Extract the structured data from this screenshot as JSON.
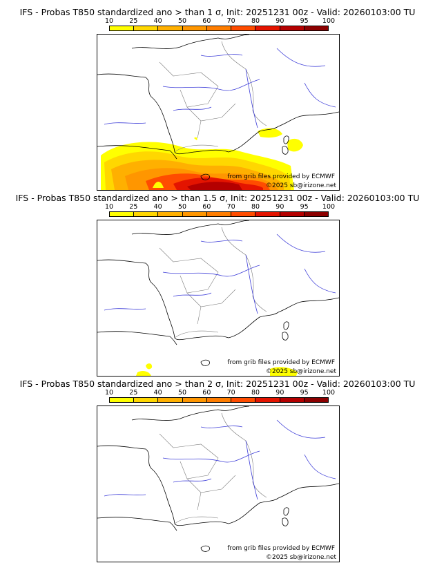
{
  "legend": {
    "ticks": [
      "10",
      "25",
      "40",
      "50",
      "60",
      "70",
      "80",
      "90",
      "95",
      "100"
    ],
    "colors": [
      "#ffff00",
      "#ffd700",
      "#ffb000",
      "#ff9600",
      "#ff7d00",
      "#ff4c00",
      "#e41400",
      "#b40000",
      "#8c0000"
    ]
  },
  "panels": [
    {
      "title": "IFS - Probas T850  standardized ano > than 1 σ, Init: 20251231 00z - Valid: 20260103:00 TU"
    },
    {
      "title": "IFS - Probas T850  standardized ano > than 1.5 σ, Init: 20251231 00z - Valid: 20260103:00 TU"
    },
    {
      "title": "IFS - Probas T850  standardized ano > than 2 σ, Init: 20251231 00z - Valid: 20260103:00 TU"
    }
  ],
  "credits": {
    "source": "from grib files provided by ECMWF",
    "copyright": "©2025 sb@irizone.net"
  }
}
